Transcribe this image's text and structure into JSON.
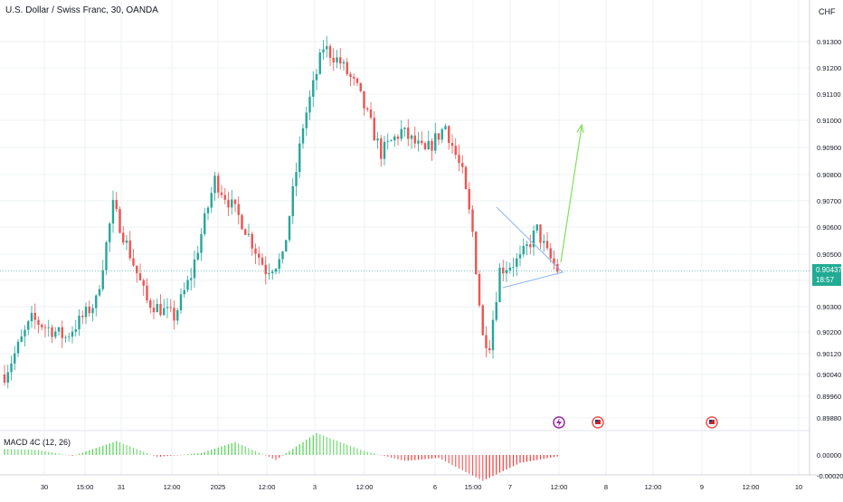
{
  "header": {
    "symbol_title": "U.S. Dollar / Swiss Franc, 30, OANDA",
    "currency": "CHF"
  },
  "price_tag": {
    "price": "0.90437",
    "countdown": "18:57"
  },
  "macd": {
    "label": "MACD 4C (12, 26)"
  },
  "colors": {
    "up": "#26a69a",
    "down": "#ef5350",
    "grid": "#eef0f3",
    "pattern_line": "#8fb4f0",
    "projection_arrow": "#7ee05a",
    "macd_up": "#4fd34f",
    "macd_down": "#ef3b3b"
  },
  "chart_data": [
    {
      "type": "candlestick",
      "title": "U.S. Dollar / Swiss Franc, 30, OANDA",
      "y_axis": {
        "ticks": [
          0.8988,
          0.8996,
          0.9004,
          0.9012,
          0.902,
          0.903,
          0.904,
          0.905,
          0.906,
          0.907,
          0.908,
          0.909,
          0.91,
          0.911,
          0.912,
          0.913
        ],
        "tick_labels": [
          "0.89880",
          "0.89960",
          "0.90040",
          "0.90120",
          "0.90200",
          "0.90300",
          "0.90400",
          "0.90500",
          "0.90600",
          "0.90700",
          "0.90800",
          "0.90900",
          "0.91000",
          "0.91100",
          "0.91200",
          "0.91300"
        ],
        "range": [
          0.8985,
          0.9135
        ]
      },
      "x_axis": {
        "tick_labels": [
          "30",
          "15:00",
          "31",
          "12:00",
          "2025",
          "12:00",
          "3",
          "12:00",
          "6",
          "15:00",
          "7",
          "12:00",
          "8",
          "12:00",
          "9",
          "12:00",
          "10"
        ]
      },
      "last_price": 0.90437,
      "price_path_key_points": [
        {
          "bar": 0,
          "close": 0.9004
        },
        {
          "bar": 8,
          "close": 0.9025
        },
        {
          "bar": 18,
          "close": 0.9018
        },
        {
          "bar": 27,
          "close": 0.9032
        },
        {
          "bar": 32,
          "close": 0.9068
        },
        {
          "bar": 42,
          "close": 0.9032
        },
        {
          "bar": 50,
          "close": 0.9026
        },
        {
          "bar": 55,
          "close": 0.9042
        },
        {
          "bar": 62,
          "close": 0.9078
        },
        {
          "bar": 70,
          "close": 0.9062
        },
        {
          "bar": 77,
          "close": 0.9044
        },
        {
          "bar": 82,
          "close": 0.9048
        },
        {
          "bar": 88,
          "close": 0.9098
        },
        {
          "bar": 94,
          "close": 0.9128
        },
        {
          "bar": 99,
          "close": 0.9122
        },
        {
          "bar": 104,
          "close": 0.9112
        },
        {
          "bar": 111,
          "close": 0.9088
        },
        {
          "bar": 117,
          "close": 0.9096
        },
        {
          "bar": 124,
          "close": 0.9088
        },
        {
          "bar": 130,
          "close": 0.9098
        },
        {
          "bar": 135,
          "close": 0.908
        },
        {
          "bar": 138,
          "close": 0.9058
        },
        {
          "bar": 141,
          "close": 0.9018
        },
        {
          "bar": 143,
          "close": 0.9016
        },
        {
          "bar": 146,
          "close": 0.9044
        },
        {
          "bar": 152,
          "close": 0.9048
        },
        {
          "bar": 157,
          "close": 0.9059
        },
        {
          "bar": 160,
          "close": 0.905
        },
        {
          "bar": 163,
          "close": 0.9044
        }
      ],
      "macd_histogram_key_points": [
        {
          "bar": 0,
          "value": 0.6
        },
        {
          "bar": 10,
          "value": 0.5
        },
        {
          "bar": 20,
          "value": -0.1
        },
        {
          "bar": 33,
          "value": 1.4
        },
        {
          "bar": 45,
          "value": -0.2
        },
        {
          "bar": 58,
          "value": 0.2
        },
        {
          "bar": 68,
          "value": 1.3
        },
        {
          "bar": 80,
          "value": -0.5
        },
        {
          "bar": 92,
          "value": 2.2
        },
        {
          "bar": 106,
          "value": 0.4
        },
        {
          "bar": 118,
          "value": -0.6
        },
        {
          "bar": 128,
          "value": -0.3
        },
        {
          "bar": 141,
          "value": -2.6
        },
        {
          "bar": 152,
          "value": -0.8
        },
        {
          "bar": 164,
          "value": -0.1
        }
      ],
      "macd_y_axis": {
        "tick_labels": [
          "0.00000",
          "-0.00020"
        ]
      }
    }
  ]
}
